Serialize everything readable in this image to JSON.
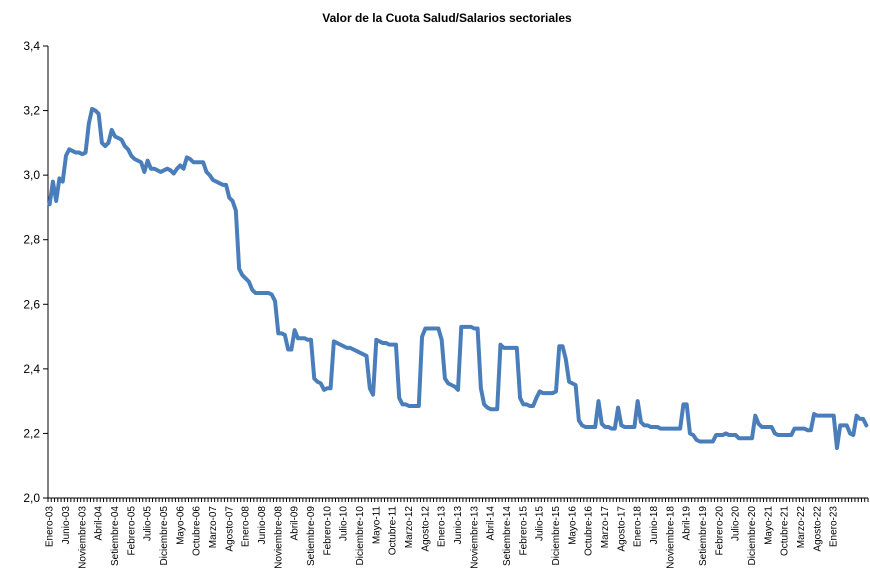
{
  "chart_data": {
    "type": "line",
    "title": "Valor de la Cuota Salud/Salarios sectoriales",
    "xlabel": "",
    "ylabel": "",
    "ylim": [
      2.0,
      3.4
    ],
    "yticks": [
      "2,0",
      "2,2",
      "2,4",
      "2,6",
      "2,8",
      "3,0",
      "3,2",
      "3,4"
    ],
    "x_start": "Enero-03",
    "x_end": "Abril-23",
    "xticks": [
      "Enero-03",
      "Junio-03",
      "Noviembre-03",
      "Abril-04",
      "Setiembre-04",
      "Febrero-05",
      "Julio-05",
      "Diciembre-05",
      "Mayo-06",
      "Octubre-06",
      "Marzo-07",
      "Agosto-07",
      "Enero-08",
      "Junio-08",
      "Noviembre-08",
      "Abril-09",
      "Setiembre-09",
      "Febrero-10",
      "Julio-10",
      "Diciembre-10",
      "Mayo-11",
      "Octubre-11",
      "Marzo-12",
      "Agosto-12",
      "Enero-13",
      "Junio-13",
      "Noviembre-13",
      "Abril-14",
      "Setiembre-14",
      "Febrero-15",
      "Julio-15",
      "Diciembre-15",
      "Mayo-16",
      "Octubre-16",
      "Marzo-17",
      "Agosto-17",
      "Enero-18",
      "Junio-18",
      "Noviembre-18",
      "Abril-19",
      "Setiembre-19",
      "Febrero-20",
      "Julio-20",
      "Diciembre-20",
      "Mayo-21",
      "Octubre-21",
      "Marzo-22",
      "Agosto-22",
      "Enero-23"
    ],
    "grid": false,
    "legend": "none",
    "series_color": "#4a7ebb",
    "series": [
      {
        "values": [
          2.91,
          2.98,
          2.92,
          2.99,
          2.98,
          3.06,
          3.08,
          3.075,
          3.07,
          3.07,
          3.065,
          3.07,
          3.16,
          3.205,
          3.2,
          3.19,
          3.1,
          3.09,
          3.1,
          3.14,
          3.12,
          3.115,
          3.11,
          3.09,
          3.08,
          3.06,
          3.05,
          3.045,
          3.04,
          3.01,
          3.045,
          3.02,
          3.02,
          3.015,
          3.01,
          3.015,
          3.02,
          3.015,
          3.005,
          3.02,
          3.03,
          3.02,
          3.055,
          3.05,
          3.04,
          3.04,
          3.04,
          3.04,
          3.01,
          3.0,
          2.985,
          2.98,
          2.975,
          2.97,
          2.97,
          2.93,
          2.92,
          2.89,
          2.71,
          2.69,
          2.68,
          2.67,
          2.645,
          2.635,
          2.635,
          2.635,
          2.635,
          2.635,
          2.63,
          2.61,
          2.51,
          2.51,
          2.505,
          2.46,
          2.46,
          2.52,
          2.495,
          2.495,
          2.495,
          2.49,
          2.49,
          2.37,
          2.36,
          2.355,
          2.335,
          2.34,
          2.34,
          2.485,
          2.48,
          2.475,
          2.47,
          2.465,
          2.465,
          2.46,
          2.455,
          2.45,
          2.445,
          2.44,
          2.34,
          2.32,
          2.49,
          2.485,
          2.48,
          2.48,
          2.475,
          2.475,
          2.475,
          2.31,
          2.29,
          2.29,
          2.285,
          2.285,
          2.285,
          2.285,
          2.5,
          2.525,
          2.525,
          2.525,
          2.525,
          2.525,
          2.49,
          2.37,
          2.355,
          2.35,
          2.345,
          2.335,
          2.53,
          2.53,
          2.53,
          2.53,
          2.525,
          2.525,
          2.34,
          2.29,
          2.28,
          2.275,
          2.275,
          2.275,
          2.475,
          2.465,
          2.465,
          2.465,
          2.465,
          2.465,
          2.31,
          2.29,
          2.29,
          2.285,
          2.285,
          2.31,
          2.33,
          2.325,
          2.325,
          2.325,
          2.325,
          2.33,
          2.47,
          2.47,
          2.43,
          2.36,
          2.355,
          2.35,
          2.24,
          2.225,
          2.22,
          2.22,
          2.22,
          2.22,
          2.3,
          2.23,
          2.22,
          2.22,
          2.215,
          2.215,
          2.28,
          2.225,
          2.22,
          2.22,
          2.22,
          2.22,
          2.3,
          2.235,
          2.225,
          2.225,
          2.22,
          2.22,
          2.22,
          2.215,
          2.215,
          2.215,
          2.215,
          2.215,
          2.215,
          2.215,
          2.29,
          2.29,
          2.2,
          2.195,
          2.18,
          2.175,
          2.175,
          2.175,
          2.175,
          2.175,
          2.195,
          2.195,
          2.195,
          2.2,
          2.195,
          2.195,
          2.195,
          2.185,
          2.185,
          2.185,
          2.185,
          2.185,
          2.255,
          2.23,
          2.22,
          2.22,
          2.22,
          2.22,
          2.2,
          2.195,
          2.195,
          2.195,
          2.195,
          2.195,
          2.215,
          2.215,
          2.215,
          2.215,
          2.21,
          2.21,
          2.26,
          2.255,
          2.255,
          2.255,
          2.255,
          2.255,
          2.255,
          2.155,
          2.225,
          2.225,
          2.225,
          2.2,
          2.195,
          2.255,
          2.245,
          2.245,
          2.225
        ]
      }
    ]
  }
}
